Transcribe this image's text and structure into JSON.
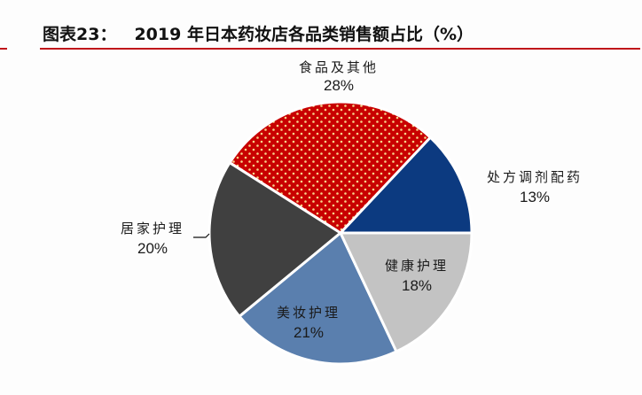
{
  "header": {
    "figure_label": "图表23：",
    "title": "2019 年日本药妆店各品类销售额占比（%）",
    "rule_color": "#c0161a"
  },
  "chart_data": {
    "type": "pie",
    "title": "2019 年日本药妆店各品类销售额占比（%）",
    "start_angle_deg": 0,
    "direction": "counterclockwise",
    "slices": [
      {
        "label": "处方调剂配药",
        "value": 13,
        "display": "13%",
        "color": "#0c3a80",
        "pattern": "none"
      },
      {
        "label": "食品及其他",
        "value": 28,
        "display": "28%",
        "color": "#c80000",
        "pattern": "dots"
      },
      {
        "label": "居家护理",
        "value": 20,
        "display": "20%",
        "color": "#404040",
        "pattern": "none"
      },
      {
        "label": "美妆护理",
        "value": 21,
        "display": "21%",
        "color": "#5a7fae",
        "pattern": "none"
      },
      {
        "label": "健康护理",
        "value": 18,
        "display": "18%",
        "color": "#c3c3c3",
        "pattern": "none"
      }
    ],
    "labels": [
      {
        "slice": 0,
        "category": "处方调剂配药",
        "percent": "13%"
      },
      {
        "slice": 1,
        "category": "食品及其他",
        "percent": "28%"
      },
      {
        "slice": 2,
        "category": "居家护理",
        "percent": "20%"
      },
      {
        "slice": 3,
        "category": "美妆护理",
        "percent": "21%"
      },
      {
        "slice": 4,
        "category": "健康护理",
        "percent": "18%"
      }
    ],
    "legend": "none (data labels on/near slices)"
  }
}
